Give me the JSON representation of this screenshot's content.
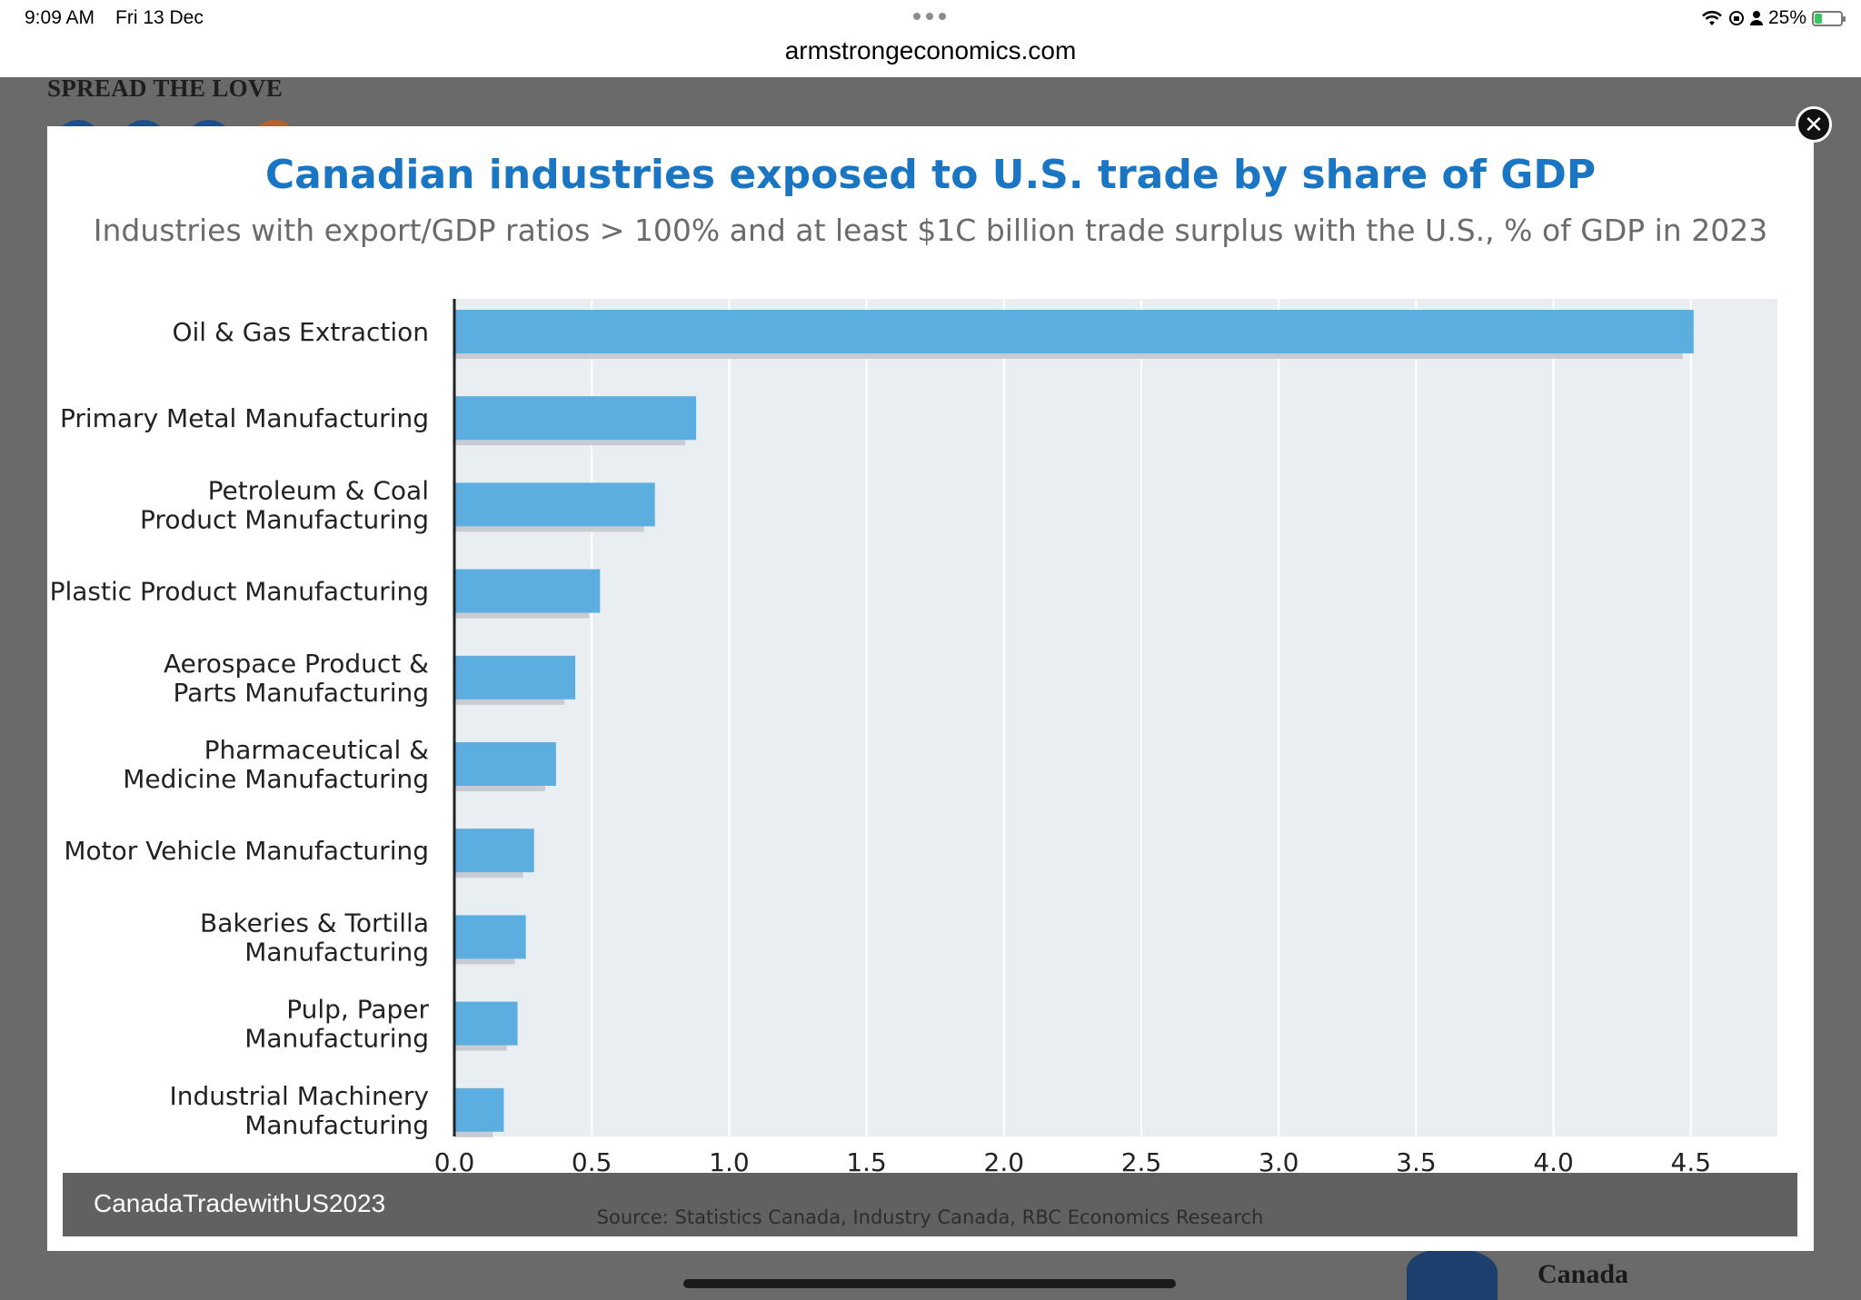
{
  "status_bar": {
    "time": "9:09 AM",
    "date": "Fri 13 Dec",
    "battery": "25%"
  },
  "browser": {
    "url": "armstrongeconomics.com"
  },
  "background_page": {
    "heading": "SPREAD THE LOVE",
    "sidebar_text": "Canada",
    "share_circle_colors": [
      "#1d4e8c",
      "#1d4e8c",
      "#1d4e8c",
      "#b8612a"
    ]
  },
  "lightbox": {
    "caption": "CanadaTradewithUS2023",
    "close_icon": "close-icon"
  },
  "colors": {
    "title": "#1a75c2",
    "bar": "#5daee0",
    "bar_shadow": "#c8ccd2",
    "plot_bg": "#e9eef2"
  },
  "chart_data": {
    "type": "bar",
    "orientation": "horizontal",
    "title": "Canadian industries exposed to U.S. trade by share of GDP",
    "subtitle": "Industries with export/GDP ratios > 100% and at least $1C billion trade surplus with the U.S., % of GDP in 2023",
    "source": "Source: Statistics Canada, Industry Canada, RBC Economics Research",
    "categories": [
      [
        "Oil & Gas Extraction"
      ],
      [
        "Primary Metal Manufacturing"
      ],
      [
        "Petroleum & Coal",
        "Product Manufacturing"
      ],
      [
        "Plastic Product Manufacturing"
      ],
      [
        "Aerospace Product &",
        "Parts Manufacturing"
      ],
      [
        "Pharmaceutical &",
        "Medicine Manufacturing"
      ],
      [
        "Motor Vehicle Manufacturing"
      ],
      [
        "Bakeries & Tortilla",
        "Manufacturing"
      ],
      [
        "Pulp, Paper",
        "Manufacturing"
      ],
      [
        "Industrial Machinery",
        "Manufacturing"
      ]
    ],
    "values": [
      4.51,
      0.88,
      0.73,
      0.53,
      0.44,
      0.37,
      0.29,
      0.26,
      0.23,
      0.18
    ],
    "xlim": [
      0,
      4.8
    ],
    "xticks": [
      "0.0",
      "0.5",
      "1.0",
      "1.5",
      "2.0",
      "2.5",
      "3.0",
      "3.5",
      "4.0",
      "4.5"
    ],
    "grid": true,
    "legend": "none"
  }
}
